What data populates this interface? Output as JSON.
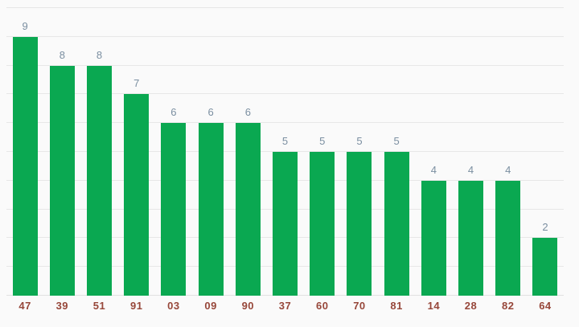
{
  "chart_data": {
    "type": "bar",
    "categories": [
      "47",
      "39",
      "51",
      "91",
      "03",
      "09",
      "90",
      "37",
      "60",
      "70",
      "81",
      "14",
      "28",
      "82",
      "64"
    ],
    "values": [
      9,
      8,
      8,
      7,
      6,
      6,
      6,
      5,
      5,
      5,
      5,
      4,
      4,
      4,
      2
    ],
    "ylim": [
      0,
      10
    ],
    "gridline_step": 1,
    "grid": true,
    "legend": "none",
    "value_labels_shown": true,
    "colors": {
      "bar": "#0aa851",
      "value_label": "#7b8fa1",
      "category_label": "#97473a",
      "gridline": "#e7e7e7",
      "baseline": "#e0e0e0",
      "background": "#fafafa"
    }
  }
}
